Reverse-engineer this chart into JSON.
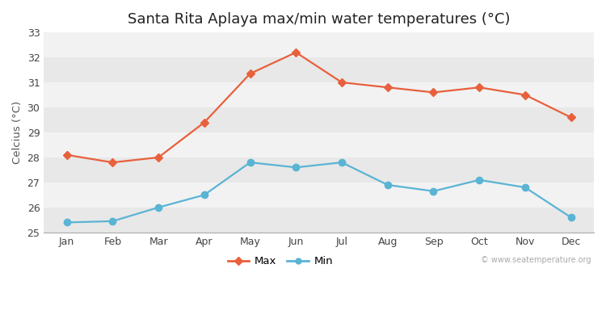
{
  "title": "Santa Rita Aplaya max/min water temperatures (°C)",
  "ylabel": "Celcius (°C)",
  "months": [
    "Jan",
    "Feb",
    "Mar",
    "Apr",
    "May",
    "Jun",
    "Jul",
    "Aug",
    "Sep",
    "Oct",
    "Nov",
    "Dec"
  ],
  "max_temps": [
    28.1,
    27.8,
    28.0,
    29.4,
    31.35,
    32.2,
    31.0,
    30.8,
    30.6,
    30.8,
    30.5,
    29.6
  ],
  "min_temps": [
    25.4,
    25.45,
    26.0,
    26.5,
    27.8,
    27.6,
    27.8,
    26.9,
    26.65,
    27.1,
    26.8,
    25.6
  ],
  "max_color": "#e8603c",
  "min_color": "#5ab4d4",
  "fig_bg_color": "#ffffff",
  "plot_bg_color": "#ffffff",
  "band_color_dark": "#e8e8e8",
  "band_color_light": "#f2f2f2",
  "ylim": [
    25,
    33
  ],
  "yticks": [
    25,
    26,
    27,
    28,
    29,
    30,
    31,
    32,
    33
  ],
  "watermark": "© www.seatemperature.org",
  "legend_labels": [
    "Max",
    "Min"
  ],
  "title_fontsize": 13,
  "label_fontsize": 9.5,
  "tick_fontsize": 9,
  "marker_max": "D",
  "marker_min": "o",
  "marker_size_max": 5,
  "marker_size_min": 6,
  "line_width": 1.6
}
